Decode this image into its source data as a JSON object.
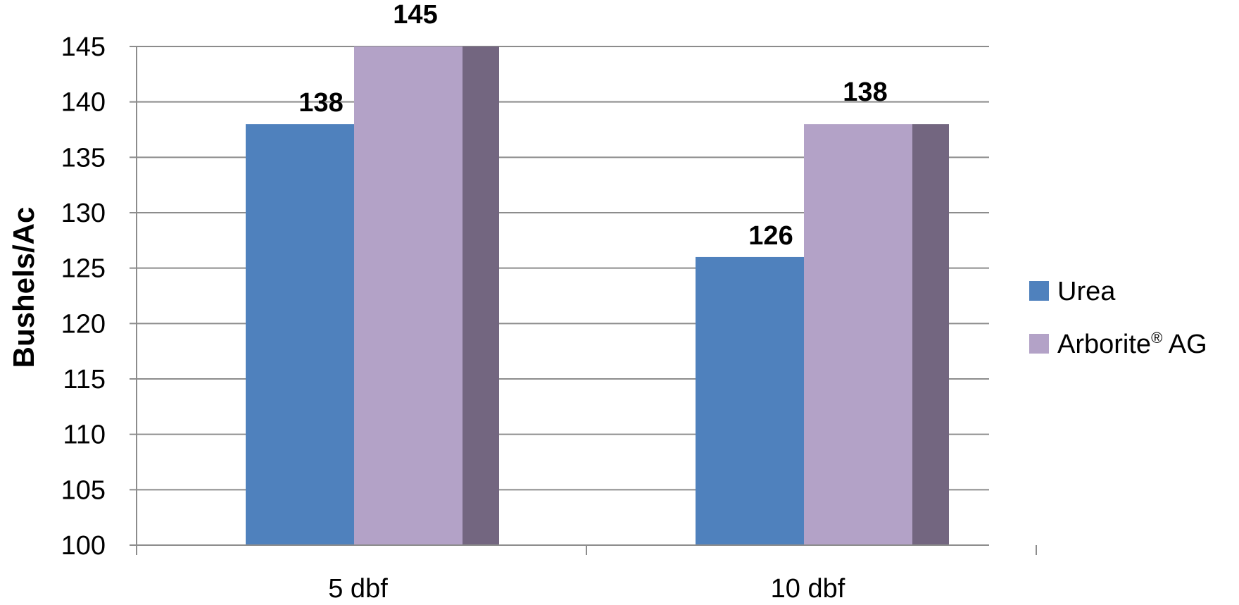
{
  "chart_data": {
    "type": "bar",
    "categories": [
      "5 dbf",
      "10 dbf"
    ],
    "series": [
      {
        "name": "Urea",
        "values": [
          138,
          126
        ]
      },
      {
        "name": "Arborite® AG",
        "values": [
          145,
          138
        ]
      }
    ],
    "title": "",
    "xlabel": "",
    "ylabel": "Bushels/Ac",
    "ylim": [
      100,
      145
    ],
    "yticks": [
      100,
      105,
      110,
      115,
      120,
      125,
      130,
      135,
      140,
      145
    ],
    "grid": true,
    "legend_position": "right",
    "data_labels": true,
    "three_d": true
  },
  "colors": {
    "Urea": "#4f81bd",
    "Arborite® AG": "#b3a2c7",
    "Arborite® AG side": "#736680",
    "grid": "#8c8c8c"
  },
  "legend": {
    "items": [
      {
        "label": "Urea",
        "main": "Urea",
        "sup": ""
      },
      {
        "label": "Arborite® AG",
        "main": "Arborite",
        "sup": "®",
        "rest": " AG"
      }
    ]
  }
}
